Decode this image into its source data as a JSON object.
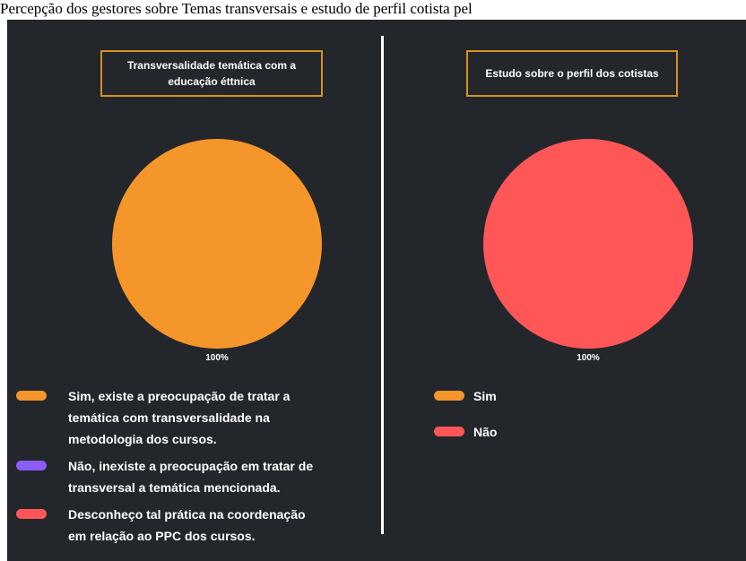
{
  "title": "Percepção dos gestores sobre Temas transversais e estudo de perfil cotista pel",
  "chart_data": [
    {
      "type": "pie",
      "title": "Transversalidade temática com a educação éttnica",
      "categories": [
        "Sim, existe a preocupação de tratar a temática com transversalidade na metodologia dos cursos.",
        "Não, inexiste a preocupação em tratar de transversal a temática mencionada.",
        "Desconheço tal prática na coordenação em relação ao PPC dos cursos."
      ],
      "values": [
        100,
        0,
        0
      ],
      "value_labels": [
        "100%",
        null,
        null
      ],
      "colors": [
        "#f5962a",
        "#8b5cf6",
        "#ff5757"
      ]
    },
    {
      "type": "pie",
      "title": "Estudo sobre o perfil dos cotistas",
      "categories": [
        "Sim",
        "Não"
      ],
      "values": [
        0,
        100
      ],
      "value_labels": [
        null,
        "100%"
      ],
      "colors": [
        "#f5962a",
        "#ff5757"
      ]
    }
  ]
}
